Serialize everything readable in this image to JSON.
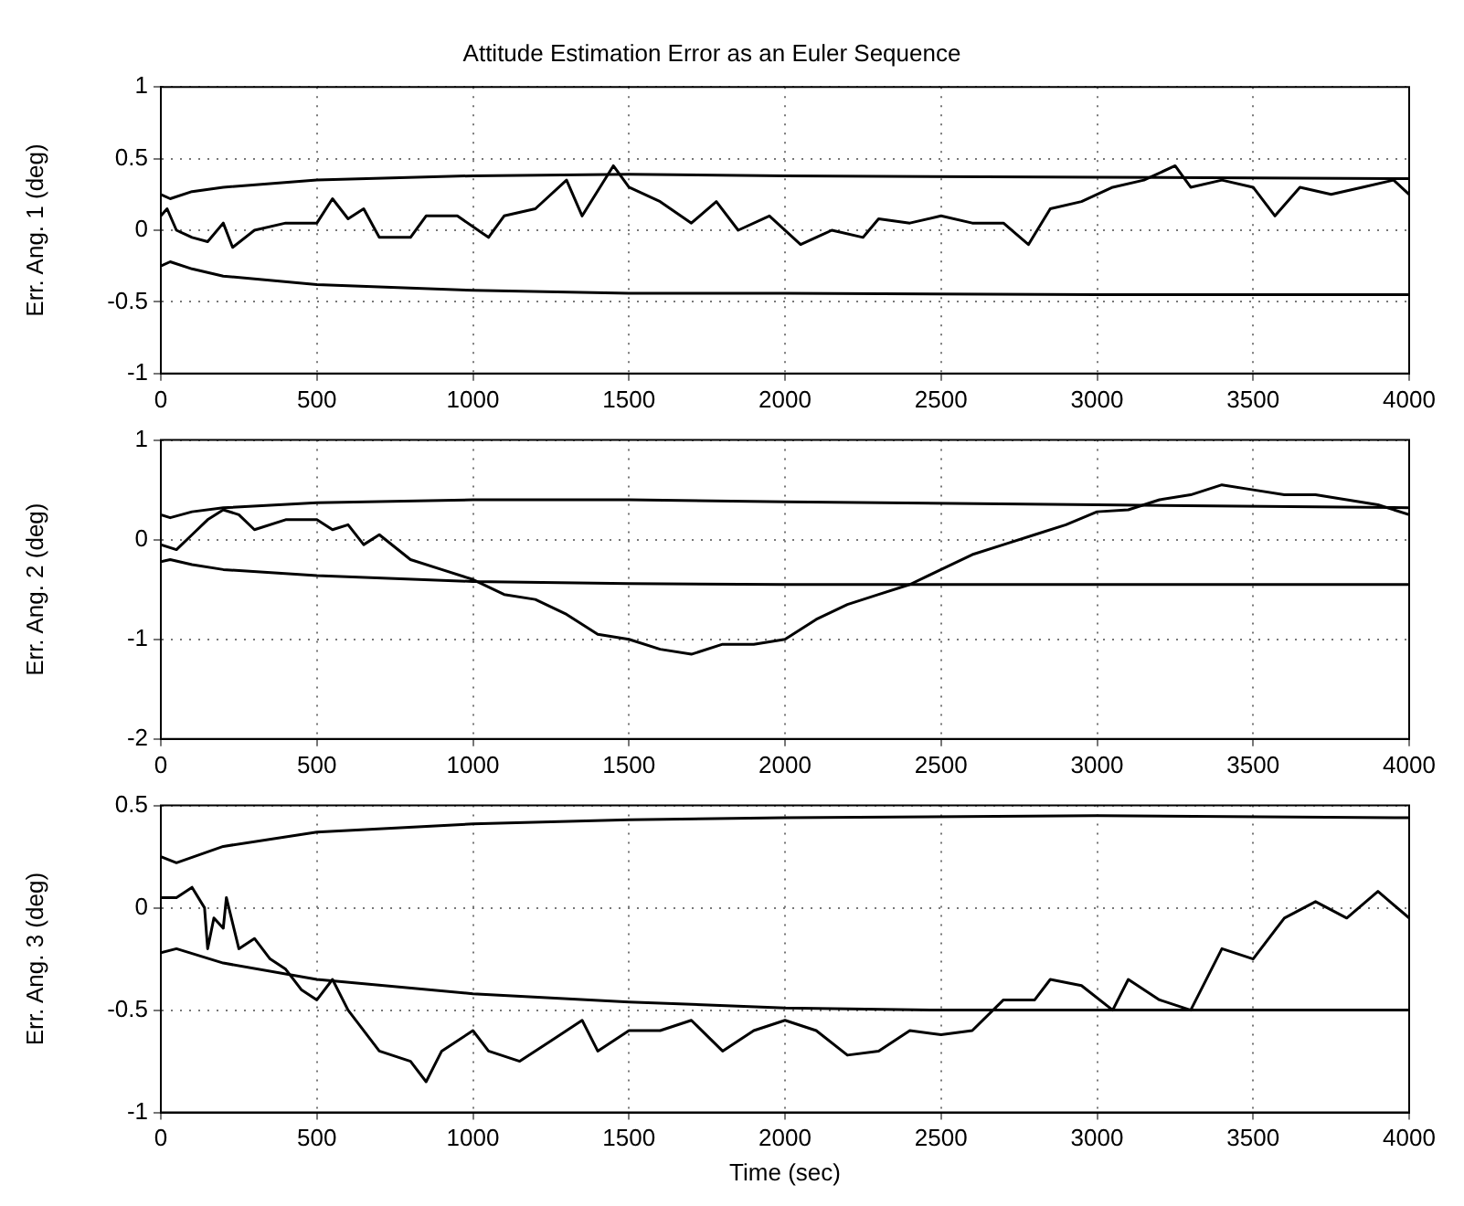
{
  "chart_data": [
    {
      "type": "line",
      "title": "Attitude Estimation Error as an Euler Sequence",
      "ylabel": "Err. Ang. 1 (deg)",
      "xlim": [
        0,
        4000
      ],
      "xticks": [
        0,
        500,
        1000,
        1500,
        2000,
        2500,
        3000,
        3500,
        4000
      ],
      "ylim": [
        -1,
        1
      ],
      "yticks": [
        -1,
        -0.5,
        0,
        0.5,
        1
      ],
      "grid": true,
      "legend": false,
      "series": [
        {
          "color": "#000000",
          "x": [
            0,
            20,
            50,
            100,
            150,
            200,
            230,
            300,
            400,
            500,
            550,
            600,
            650,
            700,
            800,
            850,
            950,
            1050,
            1100,
            1200,
            1300,
            1350,
            1450,
            1500,
            1600,
            1700,
            1780,
            1850,
            1950,
            2050,
            2150,
            2250,
            2300,
            2400,
            2500,
            2600,
            2700,
            2780,
            2850,
            2950,
            3050,
            3150,
            3250,
            3300,
            3400,
            3500,
            3570,
            3650,
            3750,
            3850,
            3950,
            4000
          ],
          "values": [
            0.1,
            0.15,
            0,
            -0.05,
            -0.08,
            0.05,
            -0.12,
            0,
            0.05,
            0.05,
            0.22,
            0.08,
            0.15,
            -0.05,
            -0.05,
            0.1,
            0.1,
            -0.05,
            0.1,
            0.15,
            0.35,
            0.1,
            0.45,
            0.3,
            0.2,
            0.05,
            0.2,
            0,
            0.1,
            -0.1,
            0,
            -0.05,
            0.08,
            0.05,
            0.1,
            0.05,
            0.05,
            -0.1,
            0.15,
            0.2,
            0.3,
            0.35,
            0.45,
            0.3,
            0.35,
            0.3,
            0.1,
            0.3,
            0.25,
            0.3,
            0.35,
            0.25
          ]
        },
        {
          "color": "#000000",
          "x": [
            0,
            30,
            100,
            200,
            500,
            1000,
            1500,
            2000,
            3000,
            4000
          ],
          "values": [
            0.25,
            0.22,
            0.27,
            0.3,
            0.35,
            0.38,
            0.39,
            0.38,
            0.37,
            0.36
          ]
        },
        {
          "color": "#000000",
          "x": [
            0,
            30,
            100,
            200,
            500,
            1000,
            1500,
            2000,
            3000,
            4000
          ],
          "values": [
            -0.25,
            -0.22,
            -0.27,
            -0.32,
            -0.38,
            -0.42,
            -0.44,
            -0.44,
            -0.45,
            -0.45
          ]
        }
      ]
    },
    {
      "type": "line",
      "ylabel": "Err. Ang. 2 (deg)",
      "xlim": [
        0,
        4000
      ],
      "xticks": [
        0,
        500,
        1000,
        1500,
        2000,
        2500,
        3000,
        3500,
        4000
      ],
      "ylim": [
        -2,
        1
      ],
      "yticks": [
        -2,
        -1,
        0,
        1
      ],
      "grid": true,
      "legend": false,
      "series": [
        {
          "color": "#000000",
          "x": [
            0,
            50,
            100,
            150,
            200,
            250,
            300,
            400,
            500,
            550,
            600,
            650,
            700,
            800,
            900,
            1000,
            1100,
            1200,
            1300,
            1400,
            1500,
            1600,
            1700,
            1800,
            1900,
            2000,
            2100,
            2200,
            2300,
            2400,
            2500,
            2600,
            2700,
            2800,
            2900,
            3000,
            3100,
            3200,
            3300,
            3400,
            3500,
            3600,
            3700,
            3800,
            3900,
            4000
          ],
          "values": [
            -0.05,
            -0.1,
            0.05,
            0.2,
            0.3,
            0.25,
            0.1,
            0.2,
            0.2,
            0.1,
            0.15,
            -0.05,
            0.05,
            -0.2,
            -0.3,
            -0.4,
            -0.55,
            -0.6,
            -0.75,
            -0.95,
            -1.0,
            -1.1,
            -1.15,
            -1.05,
            -1.05,
            -1.0,
            -0.8,
            -0.65,
            -0.55,
            -0.45,
            -0.3,
            -0.15,
            -0.05,
            0.05,
            0.15,
            0.28,
            0.3,
            0.4,
            0.45,
            0.55,
            0.5,
            0.45,
            0.45,
            0.4,
            0.35,
            0.25
          ]
        },
        {
          "color": "#000000",
          "x": [
            0,
            30,
            100,
            200,
            500,
            1000,
            1500,
            2000,
            3000,
            4000
          ],
          "values": [
            0.25,
            0.22,
            0.28,
            0.32,
            0.37,
            0.4,
            0.4,
            0.38,
            0.35,
            0.32
          ]
        },
        {
          "color": "#000000",
          "x": [
            0,
            30,
            100,
            200,
            500,
            1000,
            1500,
            2000,
            3000,
            4000
          ],
          "values": [
            -0.22,
            -0.2,
            -0.25,
            -0.3,
            -0.36,
            -0.42,
            -0.44,
            -0.45,
            -0.45,
            -0.45
          ]
        }
      ]
    },
    {
      "type": "line",
      "ylabel": "Err. Ang. 3 (deg)",
      "xlabel": "Time (sec)",
      "xlim": [
        0,
        4000
      ],
      "xticks": [
        0,
        500,
        1000,
        1500,
        2000,
        2500,
        3000,
        3500,
        4000
      ],
      "ylim": [
        -1,
        0.5
      ],
      "yticks": [
        -1,
        -0.5,
        0,
        0.5
      ],
      "grid": true,
      "legend": false,
      "series": [
        {
          "color": "#000000",
          "x": [
            0,
            50,
            100,
            140,
            150,
            170,
            200,
            210,
            250,
            300,
            350,
            400,
            450,
            500,
            550,
            600,
            700,
            800,
            850,
            900,
            1000,
            1050,
            1150,
            1250,
            1350,
            1400,
            1500,
            1600,
            1700,
            1800,
            1900,
            2000,
            2100,
            2200,
            2300,
            2400,
            2500,
            2600,
            2700,
            2800,
            2850,
            2950,
            3050,
            3100,
            3200,
            3300,
            3400,
            3500,
            3600,
            3700,
            3800,
            3900,
            4000
          ],
          "values": [
            0.05,
            0.05,
            0.1,
            0,
            -0.2,
            -0.05,
            -0.1,
            0.05,
            -0.2,
            -0.15,
            -0.25,
            -0.3,
            -0.4,
            -0.45,
            -0.35,
            -0.5,
            -0.7,
            -0.75,
            -0.85,
            -0.7,
            -0.6,
            -0.7,
            -0.75,
            -0.65,
            -0.55,
            -0.7,
            -0.6,
            -0.6,
            -0.55,
            -0.7,
            -0.6,
            -0.55,
            -0.6,
            -0.72,
            -0.7,
            -0.6,
            -0.62,
            -0.6,
            -0.45,
            -0.45,
            -0.35,
            -0.38,
            -0.5,
            -0.35,
            -0.45,
            -0.5,
            -0.2,
            -0.25,
            -0.05,
            0.03,
            -0.05,
            0.08,
            -0.05
          ]
        },
        {
          "color": "#000000",
          "x": [
            0,
            50,
            200,
            500,
            1000,
            1500,
            2000,
            3000,
            4000
          ],
          "values": [
            0.25,
            0.22,
            0.3,
            0.37,
            0.41,
            0.43,
            0.44,
            0.45,
            0.44
          ]
        },
        {
          "color": "#000000",
          "x": [
            0,
            50,
            200,
            500,
            1000,
            1500,
            2000,
            2500,
            3000,
            4000
          ],
          "values": [
            -0.22,
            -0.2,
            -0.27,
            -0.35,
            -0.42,
            -0.46,
            -0.49,
            -0.5,
            -0.5,
            -0.5
          ]
        }
      ]
    }
  ]
}
